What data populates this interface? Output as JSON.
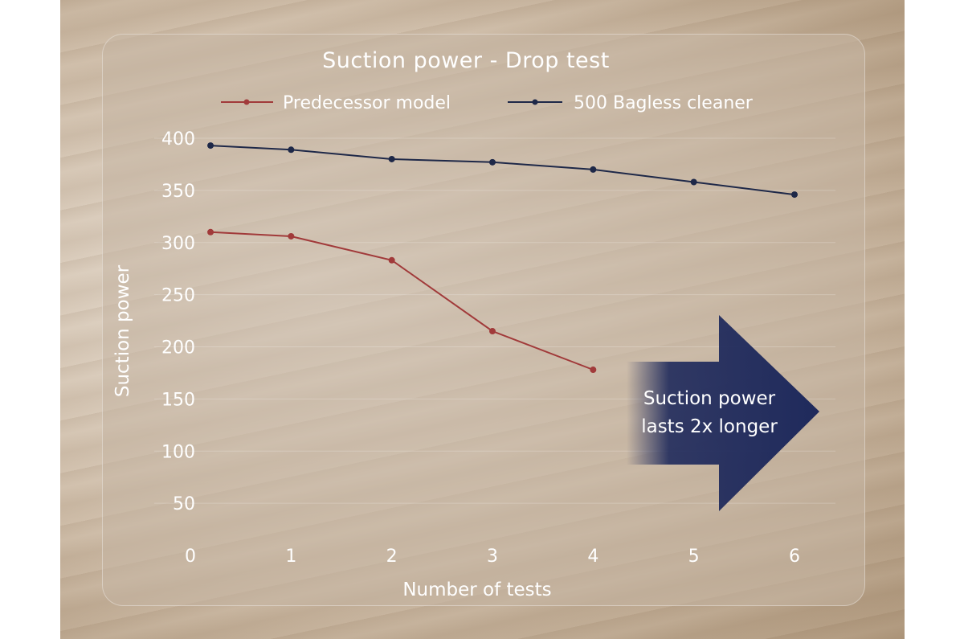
{
  "chart_data": {
    "type": "line",
    "title": "Suction power - Drop test",
    "xlabel": "Number of tests",
    "ylabel": "Suction power",
    "x_ticks": [
      "0",
      "1",
      "2",
      "3",
      "4",
      "5",
      "6"
    ],
    "y_ticks": [
      "50",
      "100",
      "150",
      "200",
      "250",
      "300",
      "350",
      "400"
    ],
    "xlim": [
      0,
      6
    ],
    "ylim": [
      0,
      400
    ],
    "grid": true,
    "legend_position": "top",
    "series": [
      {
        "name": "Predecessor model",
        "color": "#a13a3a",
        "x": [
          0.2,
          1,
          2,
          3,
          4
        ],
        "y": [
          310,
          306,
          283,
          215,
          178
        ]
      },
      {
        "name": "500 Bagless cleaner",
        "color": "#1e2848",
        "x": [
          0.2,
          1,
          2,
          3,
          4,
          5,
          6
        ],
        "y": [
          393,
          389,
          380,
          377,
          370,
          358,
          346
        ]
      }
    ],
    "annotation": {
      "lines": [
        "Suction power",
        "lasts 2x longer"
      ],
      "arrow_color": "#1f2a5c"
    }
  }
}
